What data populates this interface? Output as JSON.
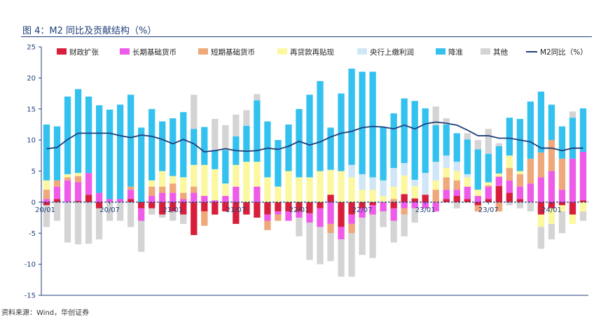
{
  "title": "图 4：M2 同比及贡献结构（%）",
  "source": "资料来源：Wind，华创证券",
  "chart_data": {
    "type": "bar",
    "stacked": true,
    "ylim": [
      -15,
      25
    ],
    "yticks": [
      -15,
      -10,
      -5,
      0,
      5,
      10,
      15,
      20,
      25
    ],
    "xtick_labels": [
      "20/01",
      "20/07",
      "21/01",
      "21/07",
      "22/01",
      "22/07",
      "23/01",
      "23/07",
      "24/01"
    ],
    "xtick_index": [
      0,
      6,
      12,
      18,
      24,
      30,
      36,
      42,
      48
    ],
    "legend_position": "top",
    "series": [
      {
        "name": "财政扩张",
        "color": "#d81e3a",
        "values": [
          -0.5,
          0.5,
          0,
          0.2,
          1.2,
          -1,
          0,
          0,
          0.5,
          -1,
          -1,
          -2,
          -1.5,
          -2,
          -5.3,
          -1.5,
          -2,
          -1.5,
          -3.5,
          -2,
          -2.5,
          -2,
          -1.5,
          -1.5,
          -1.5,
          -1.8,
          -1,
          1.2,
          -4,
          -2,
          -1,
          -0.5,
          0,
          -1,
          1.3,
          0.6,
          1.2,
          0,
          0.5,
          1,
          0.5,
          -0.5,
          0.5,
          2.6,
          1.5,
          0.5,
          0,
          -2,
          -1,
          -0.5,
          -2,
          0.3
        ]
      },
      {
        "name": "长期基础货币",
        "color": "#ee5be8",
        "values": [
          0.5,
          2,
          3.5,
          3,
          3.5,
          1.5,
          0.5,
          0.5,
          1.5,
          -2,
          1,
          1.5,
          1.5,
          0.5,
          1.5,
          1,
          0.3,
          1,
          2.5,
          0,
          2.5,
          -1,
          -0.5,
          -1.5,
          -1,
          -1.5,
          -3,
          -3.5,
          -2,
          -1.5,
          -1.5,
          -1.5,
          -1.5,
          -2,
          -1,
          -1,
          -1,
          -1.5,
          1.5,
          1,
          2,
          1,
          2,
          1.5,
          2,
          2,
          3,
          4,
          5,
          2,
          7,
          7.8
        ]
      },
      {
        "name": "短期基础货币",
        "color": "#eea87a",
        "values": [
          1.5,
          1,
          0.5,
          1,
          0,
          0,
          0,
          0,
          0.5,
          0,
          1.5,
          1,
          1.5,
          1,
          1,
          -2.3,
          0,
          0,
          0,
          0,
          0,
          -1.5,
          -1,
          0,
          0,
          0,
          0,
          -1.5,
          0,
          -1.5,
          0,
          0,
          0,
          0.5,
          -1,
          0,
          0,
          2,
          2,
          1.5,
          0,
          -1,
          0.2,
          -1.5,
          2,
          2,
          4,
          4,
          5,
          5,
          0,
          0
        ]
      },
      {
        "name": "再贷款再贴现",
        "color": "#fbf8a0",
        "values": [
          1.5,
          0,
          0.5,
          0.5,
          0,
          0,
          0,
          0,
          0,
          0,
          1,
          2.5,
          1.2,
          2.5,
          3.5,
          5,
          5,
          2,
          3.5,
          6.5,
          4,
          4,
          2.5,
          5,
          4,
          4,
          5,
          4,
          5,
          4,
          2,
          2,
          1,
          2,
          3,
          2,
          0,
          1.5,
          1.5,
          1.5,
          1.5,
          1,
          0.5,
          0.5,
          2,
          0.5,
          0,
          -2,
          -2.5,
          -1,
          -1.5,
          -1.5
        ]
      },
      {
        "name": "央行上缴利润",
        "color": "#cfe6f7",
        "values": [
          0,
          0,
          0,
          0,
          0,
          0,
          0,
          0,
          0,
          0,
          0,
          0,
          0,
          0,
          0,
          0,
          0,
          0,
          0,
          0,
          0,
          0,
          0,
          0,
          0,
          0,
          0,
          0,
          0,
          2,
          2.5,
          2,
          2.5,
          3,
          2,
          1,
          3.5,
          3,
          2,
          1.5,
          0.5,
          0,
          0,
          0,
          0,
          0,
          0,
          0,
          0,
          0,
          0,
          0
        ]
      },
      {
        "name": "降准",
        "color": "#33c2ef",
        "values": [
          9,
          8.7,
          12.5,
          13.5,
          12.3,
          14.1,
          14.4,
          15.2,
          14.8,
          12,
          11.5,
          8,
          9.3,
          10.5,
          5.8,
          6.1,
          3.1,
          5.4,
          4.6,
          5.8,
          9.9,
          9,
          7.5,
          7.5,
          11,
          13.3,
          14.5,
          6.8,
          12.5,
          15.5,
          16.5,
          17,
          8.6,
          8.8,
          10.4,
          12.7,
          10.4,
          5.9,
          5,
          4.6,
          5.6,
          6.5,
          4.6,
          4.4,
          6.1,
          8.4,
          9.2,
          9.8,
          5.7,
          5.2,
          6.6,
          7.0
        ]
      },
      {
        "name": "其他",
        "color": "#d4d4d4",
        "values": [
          -3.5,
          -3,
          -6.5,
          -6.8,
          -6.7,
          -5,
          -3,
          -3,
          -4,
          -5,
          -1,
          -0.5,
          -1.5,
          -1.5,
          5.5,
          0,
          5,
          4,
          3.5,
          2.5,
          1,
          0,
          0,
          0,
          -3,
          -6,
          -6,
          -4.5,
          -6,
          -7,
          -6,
          -7,
          -2.5,
          -3.5,
          -3.5,
          -2.3,
          0,
          3,
          1,
          -1,
          1,
          1.5,
          4,
          0.5,
          -0.5,
          -1,
          -1.5,
          -3.5,
          -2.5,
          -3.5,
          1,
          -1.5
        ]
      }
    ],
    "line": {
      "name": "M2同比（%）",
      "color": "#1f3f7a",
      "values": [
        8.6,
        8.8,
        10.1,
        11.1,
        11.1,
        11.1,
        11.1,
        10.7,
        10.4,
        10.8,
        10.6,
        10.1,
        9.4,
        10.1,
        9.4,
        8.1,
        8.3,
        8.6,
        8.3,
        8.2,
        8.3,
        8.7,
        8.5,
        9.0,
        9.8,
        9.2,
        9.7,
        10.5,
        11.1,
        11.4,
        12.0,
        12.2,
        12.1,
        11.8,
        12.4,
        11.8,
        12.6,
        12.9,
        12.7,
        12.4,
        11.6,
        10.7,
        10.7,
        10.3,
        10.3,
        10.0,
        9.7,
        8.7,
        8.7,
        8.3,
        8.7,
        8.7
      ]
    }
  }
}
